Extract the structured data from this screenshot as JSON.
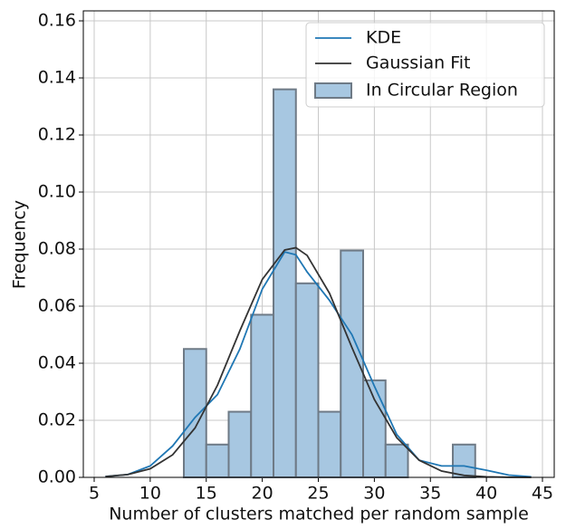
{
  "chart_data": {
    "type": "histogram",
    "xlabel": "Number of clusters matched per random sample",
    "ylabel": "Frequency",
    "xlim": [
      4.03,
      46.05
    ],
    "ylim": [
      0,
      0.1635
    ],
    "xticks": [
      5,
      10,
      15,
      20,
      25,
      30,
      35,
      40,
      45
    ],
    "yticks": [
      {
        "value": 0,
        "label": "0.00"
      },
      {
        "value": 0.02,
        "label": "0.02"
      },
      {
        "value": 0.04,
        "label": "0.04"
      },
      {
        "value": 0.06,
        "label": "0.06"
      },
      {
        "value": 0.08,
        "label": "0.08"
      },
      {
        "value": 0.1,
        "label": "0.10"
      },
      {
        "value": 0.12,
        "label": "0.12"
      },
      {
        "value": 0.14,
        "label": "0.14"
      },
      {
        "value": 0.16,
        "label": "0.16"
      }
    ],
    "grid": true,
    "legend": "upper right",
    "histogram": {
      "name": "In Circular Region",
      "color": "#a7c7e1",
      "edgecolor": "#6e7a86",
      "bins": [
        13,
        15,
        17,
        19,
        21,
        23,
        25,
        27,
        29,
        31,
        33,
        35,
        37,
        39
      ],
      "values": [
        0.045,
        0.0115,
        0.023,
        0.057,
        0.136,
        0.068,
        0.023,
        0.0795,
        0.034,
        0.0115,
        0,
        0,
        0.0115
      ]
    },
    "series": [
      {
        "name": "KDE",
        "color": "#1f77b4",
        "x": [
          6,
          8,
          10,
          12,
          14,
          16,
          18,
          20,
          22,
          23,
          24,
          26,
          28,
          30,
          32,
          34,
          36,
          38,
          40,
          42,
          44
        ],
        "values": [
          0.0003,
          0.001,
          0.004,
          0.011,
          0.021,
          0.029,
          0.045,
          0.066,
          0.079,
          0.078,
          0.072,
          0.062,
          0.05,
          0.032,
          0.015,
          0.006,
          0.004,
          0.004,
          0.0025,
          0.0008,
          0.0002
        ]
      },
      {
        "name": "Gaussian Fit",
        "color": "#333333",
        "x": [
          6,
          8,
          10,
          12,
          14,
          16,
          18,
          20,
          22,
          23,
          24,
          26,
          28,
          30,
          32,
          34,
          36,
          38,
          40,
          42,
          44
        ],
        "values": [
          0.00028,
          0.001,
          0.003,
          0.0079,
          0.0173,
          0.0323,
          0.0514,
          0.0694,
          0.0797,
          0.0805,
          0.0778,
          0.0645,
          0.0455,
          0.0273,
          0.0139,
          0.006,
          0.0022,
          0.0007,
          0.0002,
          5e-05,
          1e-05
        ]
      }
    ]
  }
}
